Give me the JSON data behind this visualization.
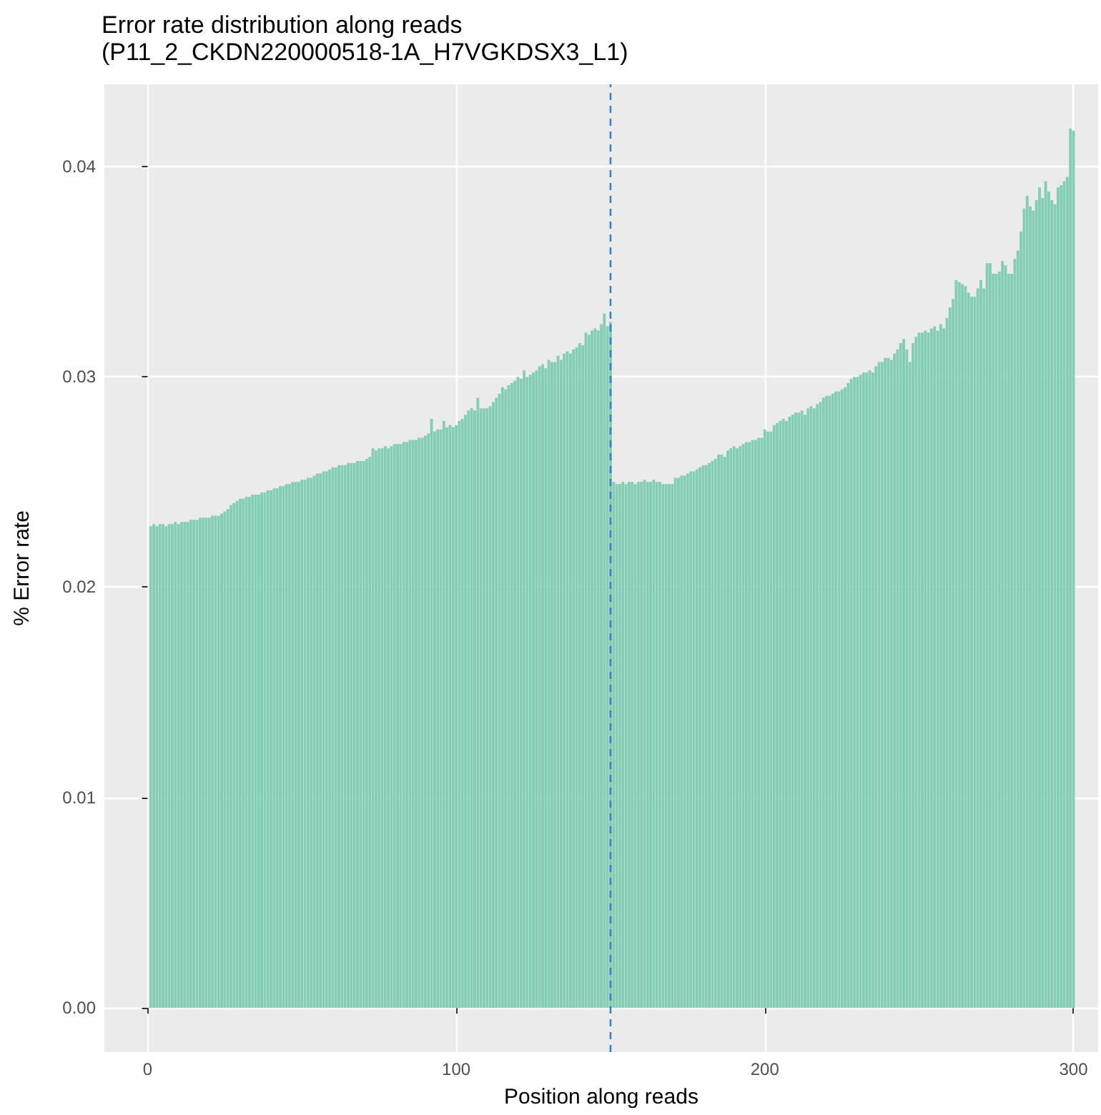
{
  "chart_data": {
    "type": "bar",
    "title": "Error rate distribution along reads",
    "subtitle": "(P11_2_CKDN220000518-1A_H7VGKDSX3_L1)",
    "xlabel": "Position along reads",
    "ylabel": "% Error rate",
    "x": [
      1,
      2,
      3,
      4,
      5,
      6,
      7,
      8,
      9,
      10,
      11,
      12,
      13,
      14,
      15,
      16,
      17,
      18,
      19,
      20,
      21,
      22,
      23,
      24,
      25,
      26,
      27,
      28,
      29,
      30,
      31,
      32,
      33,
      34,
      35,
      36,
      37,
      38,
      39,
      40,
      41,
      42,
      43,
      44,
      45,
      46,
      47,
      48,
      49,
      50,
      51,
      52,
      53,
      54,
      55,
      56,
      57,
      58,
      59,
      60,
      61,
      62,
      63,
      64,
      65,
      66,
      67,
      68,
      69,
      70,
      71,
      72,
      73,
      74,
      75,
      76,
      77,
      78,
      79,
      80,
      81,
      82,
      83,
      84,
      85,
      86,
      87,
      88,
      89,
      90,
      91,
      92,
      93,
      94,
      95,
      96,
      97,
      98,
      99,
      100,
      101,
      102,
      103,
      104,
      105,
      106,
      107,
      108,
      109,
      110,
      111,
      112,
      113,
      114,
      115,
      116,
      117,
      118,
      119,
      120,
      121,
      122,
      123,
      124,
      125,
      126,
      127,
      128,
      129,
      130,
      131,
      132,
      133,
      134,
      135,
      136,
      137,
      138,
      139,
      140,
      141,
      142,
      143,
      144,
      145,
      146,
      147,
      148,
      149,
      150,
      151,
      152,
      153,
      154,
      155,
      156,
      157,
      158,
      159,
      160,
      161,
      162,
      163,
      164,
      165,
      166,
      167,
      168,
      169,
      170,
      171,
      172,
      173,
      174,
      175,
      176,
      177,
      178,
      179,
      180,
      181,
      182,
      183,
      184,
      185,
      186,
      187,
      188,
      189,
      190,
      191,
      192,
      193,
      194,
      195,
      196,
      197,
      198,
      199,
      200,
      201,
      202,
      203,
      204,
      205,
      206,
      207,
      208,
      209,
      210,
      211,
      212,
      213,
      214,
      215,
      216,
      217,
      218,
      219,
      220,
      221,
      222,
      223,
      224,
      225,
      226,
      227,
      228,
      229,
      230,
      231,
      232,
      233,
      234,
      235,
      236,
      237,
      238,
      239,
      240,
      241,
      242,
      243,
      244,
      245,
      246,
      247,
      248,
      249,
      250,
      251,
      252,
      253,
      254,
      255,
      256,
      257,
      258,
      259,
      260,
      261,
      262,
      263,
      264,
      265,
      266,
      267,
      268,
      269,
      270,
      271,
      272,
      273,
      274,
      275,
      276,
      277,
      278,
      279,
      280,
      281,
      282,
      283,
      284,
      285,
      286,
      287,
      288,
      289,
      290,
      291,
      292,
      293,
      294,
      295,
      296,
      297,
      298,
      299,
      300
    ],
    "values": [
      0.0229,
      0.023,
      0.0229,
      0.023,
      0.023,
      0.0229,
      0.023,
      0.023,
      0.0231,
      0.023,
      0.0231,
      0.0231,
      0.0231,
      0.0232,
      0.0232,
      0.0232,
      0.0233,
      0.0233,
      0.0233,
      0.0233,
      0.0234,
      0.0234,
      0.0234,
      0.0235,
      0.0236,
      0.0237,
      0.0239,
      0.024,
      0.0241,
      0.0242,
      0.0242,
      0.0243,
      0.0243,
      0.0244,
      0.0244,
      0.0244,
      0.0245,
      0.0245,
      0.0246,
      0.0246,
      0.0247,
      0.0247,
      0.0248,
      0.0248,
      0.0249,
      0.0249,
      0.025,
      0.025,
      0.025,
      0.0251,
      0.0251,
      0.0252,
      0.0252,
      0.0253,
      0.0254,
      0.0254,
      0.0255,
      0.0255,
      0.0256,
      0.0257,
      0.0257,
      0.0258,
      0.0258,
      0.0258,
      0.0259,
      0.0259,
      0.0259,
      0.026,
      0.026,
      0.026,
      0.0261,
      0.0262,
      0.0266,
      0.0265,
      0.0266,
      0.0266,
      0.0267,
      0.0266,
      0.0267,
      0.0268,
      0.0268,
      0.0268,
      0.0269,
      0.0269,
      0.027,
      0.027,
      0.027,
      0.0271,
      0.0271,
      0.0272,
      0.0273,
      0.028,
      0.0274,
      0.0275,
      0.0275,
      0.0279,
      0.0276,
      0.0277,
      0.0276,
      0.0277,
      0.0279,
      0.028,
      0.0282,
      0.0284,
      0.0285,
      0.0284,
      0.029,
      0.0285,
      0.0285,
      0.0285,
      0.0286,
      0.0288,
      0.029,
      0.0292,
      0.0295,
      0.0294,
      0.0296,
      0.0297,
      0.0298,
      0.03,
      0.0299,
      0.0303,
      0.03,
      0.0301,
      0.0302,
      0.0303,
      0.0305,
      0.0306,
      0.0304,
      0.0308,
      0.0307,
      0.0307,
      0.031,
      0.0308,
      0.0311,
      0.0312,
      0.0311,
      0.0313,
      0.0314,
      0.0316,
      0.0315,
      0.0321,
      0.032,
      0.0322,
      0.0323,
      0.0322,
      0.0325,
      0.033,
      0.0324,
      0.0326,
      0.025,
      0.0249,
      0.0249,
      0.025,
      0.0249,
      0.025,
      0.025,
      0.0249,
      0.025,
      0.025,
      0.0251,
      0.025,
      0.025,
      0.0251,
      0.025,
      0.025,
      0.0249,
      0.0249,
      0.0249,
      0.0249,
      0.0252,
      0.0252,
      0.0253,
      0.0253,
      0.0254,
      0.0255,
      0.0255,
      0.0256,
      0.0257,
      0.0258,
      0.0258,
      0.0259,
      0.026,
      0.0261,
      0.0263,
      0.0263,
      0.0262,
      0.0265,
      0.0266,
      0.0267,
      0.0266,
      0.0267,
      0.0268,
      0.0269,
      0.0269,
      0.027,
      0.027,
      0.0271,
      0.0271,
      0.0275,
      0.0274,
      0.0274,
      0.0277,
      0.0278,
      0.0279,
      0.028,
      0.0279,
      0.0281,
      0.0282,
      0.0283,
      0.0283,
      0.0284,
      0.0282,
      0.0285,
      0.0286,
      0.0285,
      0.0287,
      0.0288,
      0.029,
      0.0291,
      0.0291,
      0.0292,
      0.0293,
      0.0293,
      0.0294,
      0.0295,
      0.0297,
      0.0299,
      0.03,
      0.03,
      0.0301,
      0.0302,
      0.0302,
      0.0303,
      0.0302,
      0.0305,
      0.0307,
      0.0307,
      0.0309,
      0.0309,
      0.0308,
      0.0311,
      0.0313,
      0.0316,
      0.0318,
      0.0313,
      0.0307,
      0.0316,
      0.0319,
      0.0321,
      0.0321,
      0.0322,
      0.0321,
      0.0323,
      0.0324,
      0.0322,
      0.0325,
      0.0323,
      0.0328,
      0.0333,
      0.0337,
      0.0346,
      0.0345,
      0.0344,
      0.0343,
      0.034,
      0.0338,
      0.0338,
      0.0342,
      0.0346,
      0.0342,
      0.0354,
      0.0354,
      0.0349,
      0.0349,
      0.035,
      0.0355,
      0.0353,
      0.0349,
      0.0349,
      0.0356,
      0.036,
      0.0369,
      0.038,
      0.0386,
      0.0381,
      0.0379,
      0.0384,
      0.039,
      0.0385,
      0.0393,
      0.0388,
      0.0384,
      0.0382,
      0.039,
      0.0391,
      0.0393,
      0.0395,
      0.0418,
      0.0417
    ],
    "color": "#84ceb5",
    "xlim": [
      -14,
      308
    ],
    "xticks": [
      0,
      100,
      200,
      300
    ],
    "ylim": [
      -0.0021,
      0.0439
    ],
    "yticks": [
      {
        "value": 0,
        "label": "0.00"
      },
      0.01,
      0.02,
      0.03,
      0.04
    ],
    "grid": true,
    "ref_lines": [
      {
        "axis": "x",
        "value": 150,
        "color": "#3f80c0",
        "line_style": "dashed"
      }
    ]
  }
}
